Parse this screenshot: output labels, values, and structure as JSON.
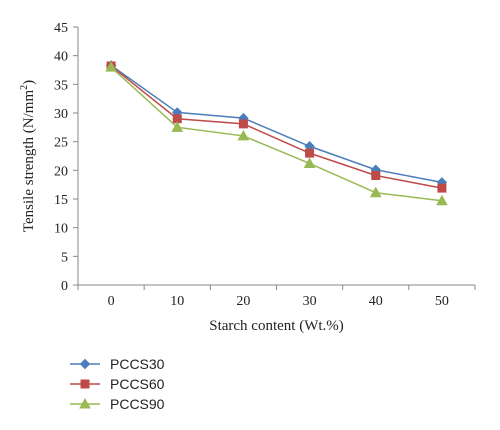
{
  "chart_data": {
    "type": "line",
    "title": "",
    "xlabel": "Starch content (Wt.%)",
    "ylabel_main": "Tensile strength (N/mm",
    "ylabel_sup": "2",
    "ylabel_close": ")",
    "x": [
      0,
      10,
      20,
      30,
      40,
      50
    ],
    "x_ticks": [
      "0",
      "10",
      "20",
      "30",
      "40",
      "50"
    ],
    "ylim": [
      0,
      45
    ],
    "y_ticks": [
      "0",
      "5",
      "10",
      "15",
      "20",
      "25",
      "30",
      "35",
      "40",
      "45"
    ],
    "grid": false,
    "legend_position": "bottom-left",
    "series": [
      {
        "name": "PCCS30",
        "color": "#4a7ebb",
        "marker": "diamond",
        "values": [
          38.3,
          30.1,
          29.1,
          24.2,
          20.1,
          17.9
        ]
      },
      {
        "name": "PCCS60",
        "color": "#be4b48",
        "marker": "square",
        "values": [
          38.2,
          29.0,
          28.1,
          23.0,
          19.1,
          16.9
        ]
      },
      {
        "name": "PCCS90",
        "color": "#98b954",
        "marker": "triangle",
        "values": [
          38.0,
          27.5,
          26.0,
          21.2,
          16.1,
          14.7
        ]
      }
    ]
  }
}
